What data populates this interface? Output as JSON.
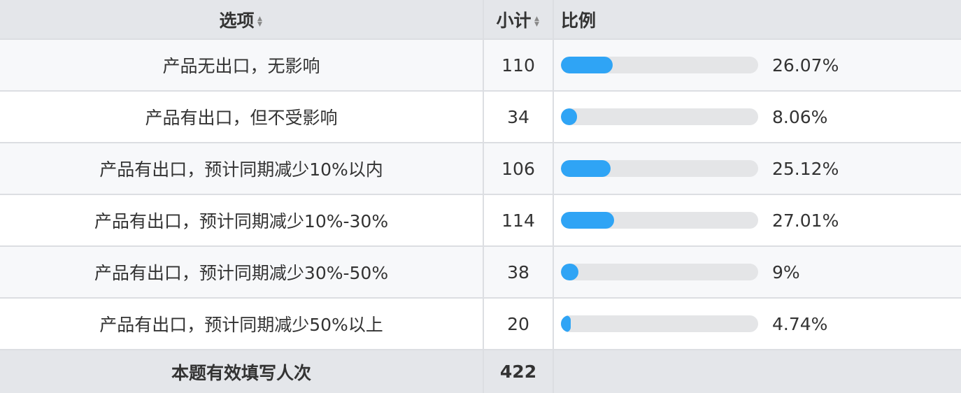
{
  "header": {
    "option": "选项",
    "count": "小计",
    "ratio": "比例"
  },
  "colors": {
    "bar_fill": "#2fa4f5",
    "bar_track": "#e4e5e7",
    "header_bg": "#e4e6ea"
  },
  "rows": [
    {
      "option": "产品无出口，无影响",
      "count": "110",
      "percent": 26.07,
      "percent_label": "26.07%"
    },
    {
      "option": "产品有出口，但不受影响",
      "count": "34",
      "percent": 8.06,
      "percent_label": "8.06%"
    },
    {
      "option": "产品有出口，预计同期减少10%以内",
      "count": "106",
      "percent": 25.12,
      "percent_label": "25.12%"
    },
    {
      "option": "产品有出口，预计同期减少10%-30%",
      "count": "114",
      "percent": 27.01,
      "percent_label": "27.01%"
    },
    {
      "option": "产品有出口，预计同期减少30%-50%",
      "count": "38",
      "percent": 9,
      "percent_label": "9%"
    },
    {
      "option": "产品有出口，预计同期减少50%以上",
      "count": "20",
      "percent": 4.74,
      "percent_label": "4.74%"
    }
  ],
  "footer": {
    "label": "本题有效填写人次",
    "total": "422"
  }
}
